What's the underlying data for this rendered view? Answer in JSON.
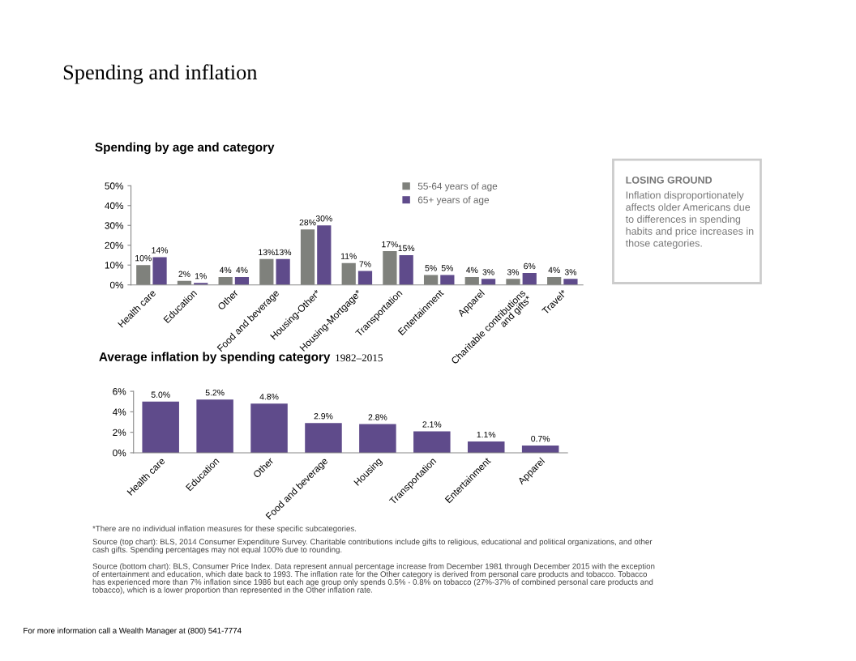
{
  "chart_data": [
    {
      "type": "bar",
      "title": "Spending by age and category",
      "categories": [
        "Health care",
        "Education",
        "Other",
        "Food and beverage",
        "Housing-Other*",
        "Housing-Mortgage*",
        "Transportation",
        "Entertainment",
        "Apparel",
        "Charitable contributions\nand gifts*",
        "Travel*"
      ],
      "series": [
        {
          "name": "55-64 years of age",
          "color": "#7f817c",
          "values": [
            10,
            2,
            4,
            13,
            28,
            11,
            17,
            5,
            4,
            3,
            4
          ],
          "value_labels": [
            "10%",
            "2%",
            "4%",
            "13%",
            "28%",
            "11%",
            "17%",
            "5%",
            "4%",
            "3%",
            "4%"
          ]
        },
        {
          "name": "65+ years of age",
          "color": "#5f4b8b",
          "values": [
            14,
            1,
            4,
            13,
            30,
            7,
            15,
            5,
            3,
            6,
            3
          ],
          "value_labels": [
            "14%",
            "1%",
            "4%",
            "13%",
            "30%",
            "7%",
            "15%",
            "5%",
            "3%",
            "6%",
            "3%"
          ]
        }
      ],
      "ylim": [
        0,
        50
      ],
      "yticks": [
        {
          "value": 0,
          "label": "0%"
        },
        {
          "value": 10,
          "label": "10%"
        },
        {
          "value": 20,
          "label": "20%"
        },
        {
          "value": 30,
          "label": "30%"
        },
        {
          "value": 40,
          "label": "40%"
        },
        {
          "value": 50,
          "label": "50%"
        }
      ],
      "legend": "top right",
      "grid": false
    },
    {
      "type": "bar",
      "title": "Average inflation by spending category",
      "subtitle": "1982–2015",
      "categories": [
        "Health care",
        "Education",
        "Other",
        "Food and beverage",
        "Housing",
        "Transportation",
        "Entertainment",
        "Apparel"
      ],
      "series": [
        {
          "color": "#5f4b8b",
          "values": [
            5.0,
            5.2,
            4.8,
            2.9,
            2.8,
            2.1,
            1.1,
            0.7
          ],
          "value_labels": [
            "5.0%",
            "5.2%",
            "4.8%",
            "2.9%",
            "2.8%",
            "2.1%",
            "1.1%",
            "0.7%"
          ]
        }
      ],
      "ylim": [
        0,
        6
      ],
      "yticks": [
        {
          "value": 0,
          "label": "0%"
        },
        {
          "value": 2,
          "label": "2%"
        },
        {
          "value": 4,
          "label": "4%"
        },
        {
          "value": 6,
          "label": "6%"
        }
      ],
      "legend": false,
      "grid": false
    },
    {
      "type": "other",
      "title": "LOSING GROUND",
      "annotations": [
        "Inflation disproportionately affects older Americans due to differences in spending habits and price increases in those categories."
      ]
    },
    {
      "type": "other",
      "title": "Spending and inflation",
      "annotations": [
        "*There are no individual inflation measures for these specific subcategories.",
        "Source (top chart): BLS, 2014 Consumer Expenditure Survey. Charitable contributions include gifts to religious, educational and political organizations, and other cash gifts. Spending percentages may not equal 100% due to rounding.",
        "Source (bottom chart): BLS, Consumer Price Index. Data represent annual percentage increase from December 1981 through December 2015 with the exception of entertainment and education, which date back to 1993. The inflation rate for the Other category is derived from personal care products and tobacco. Tobacco has experienced more than 7% inflation since 1986 but each age group only spends 0.5% - 0.8% on tobacco (27%-37% of combined personal care products and tobacco), which is a lower proportion than represented in the Other inflation rate.",
        "For more information call a Wealth Manager at (800) 541-7774"
      ]
    }
  ]
}
